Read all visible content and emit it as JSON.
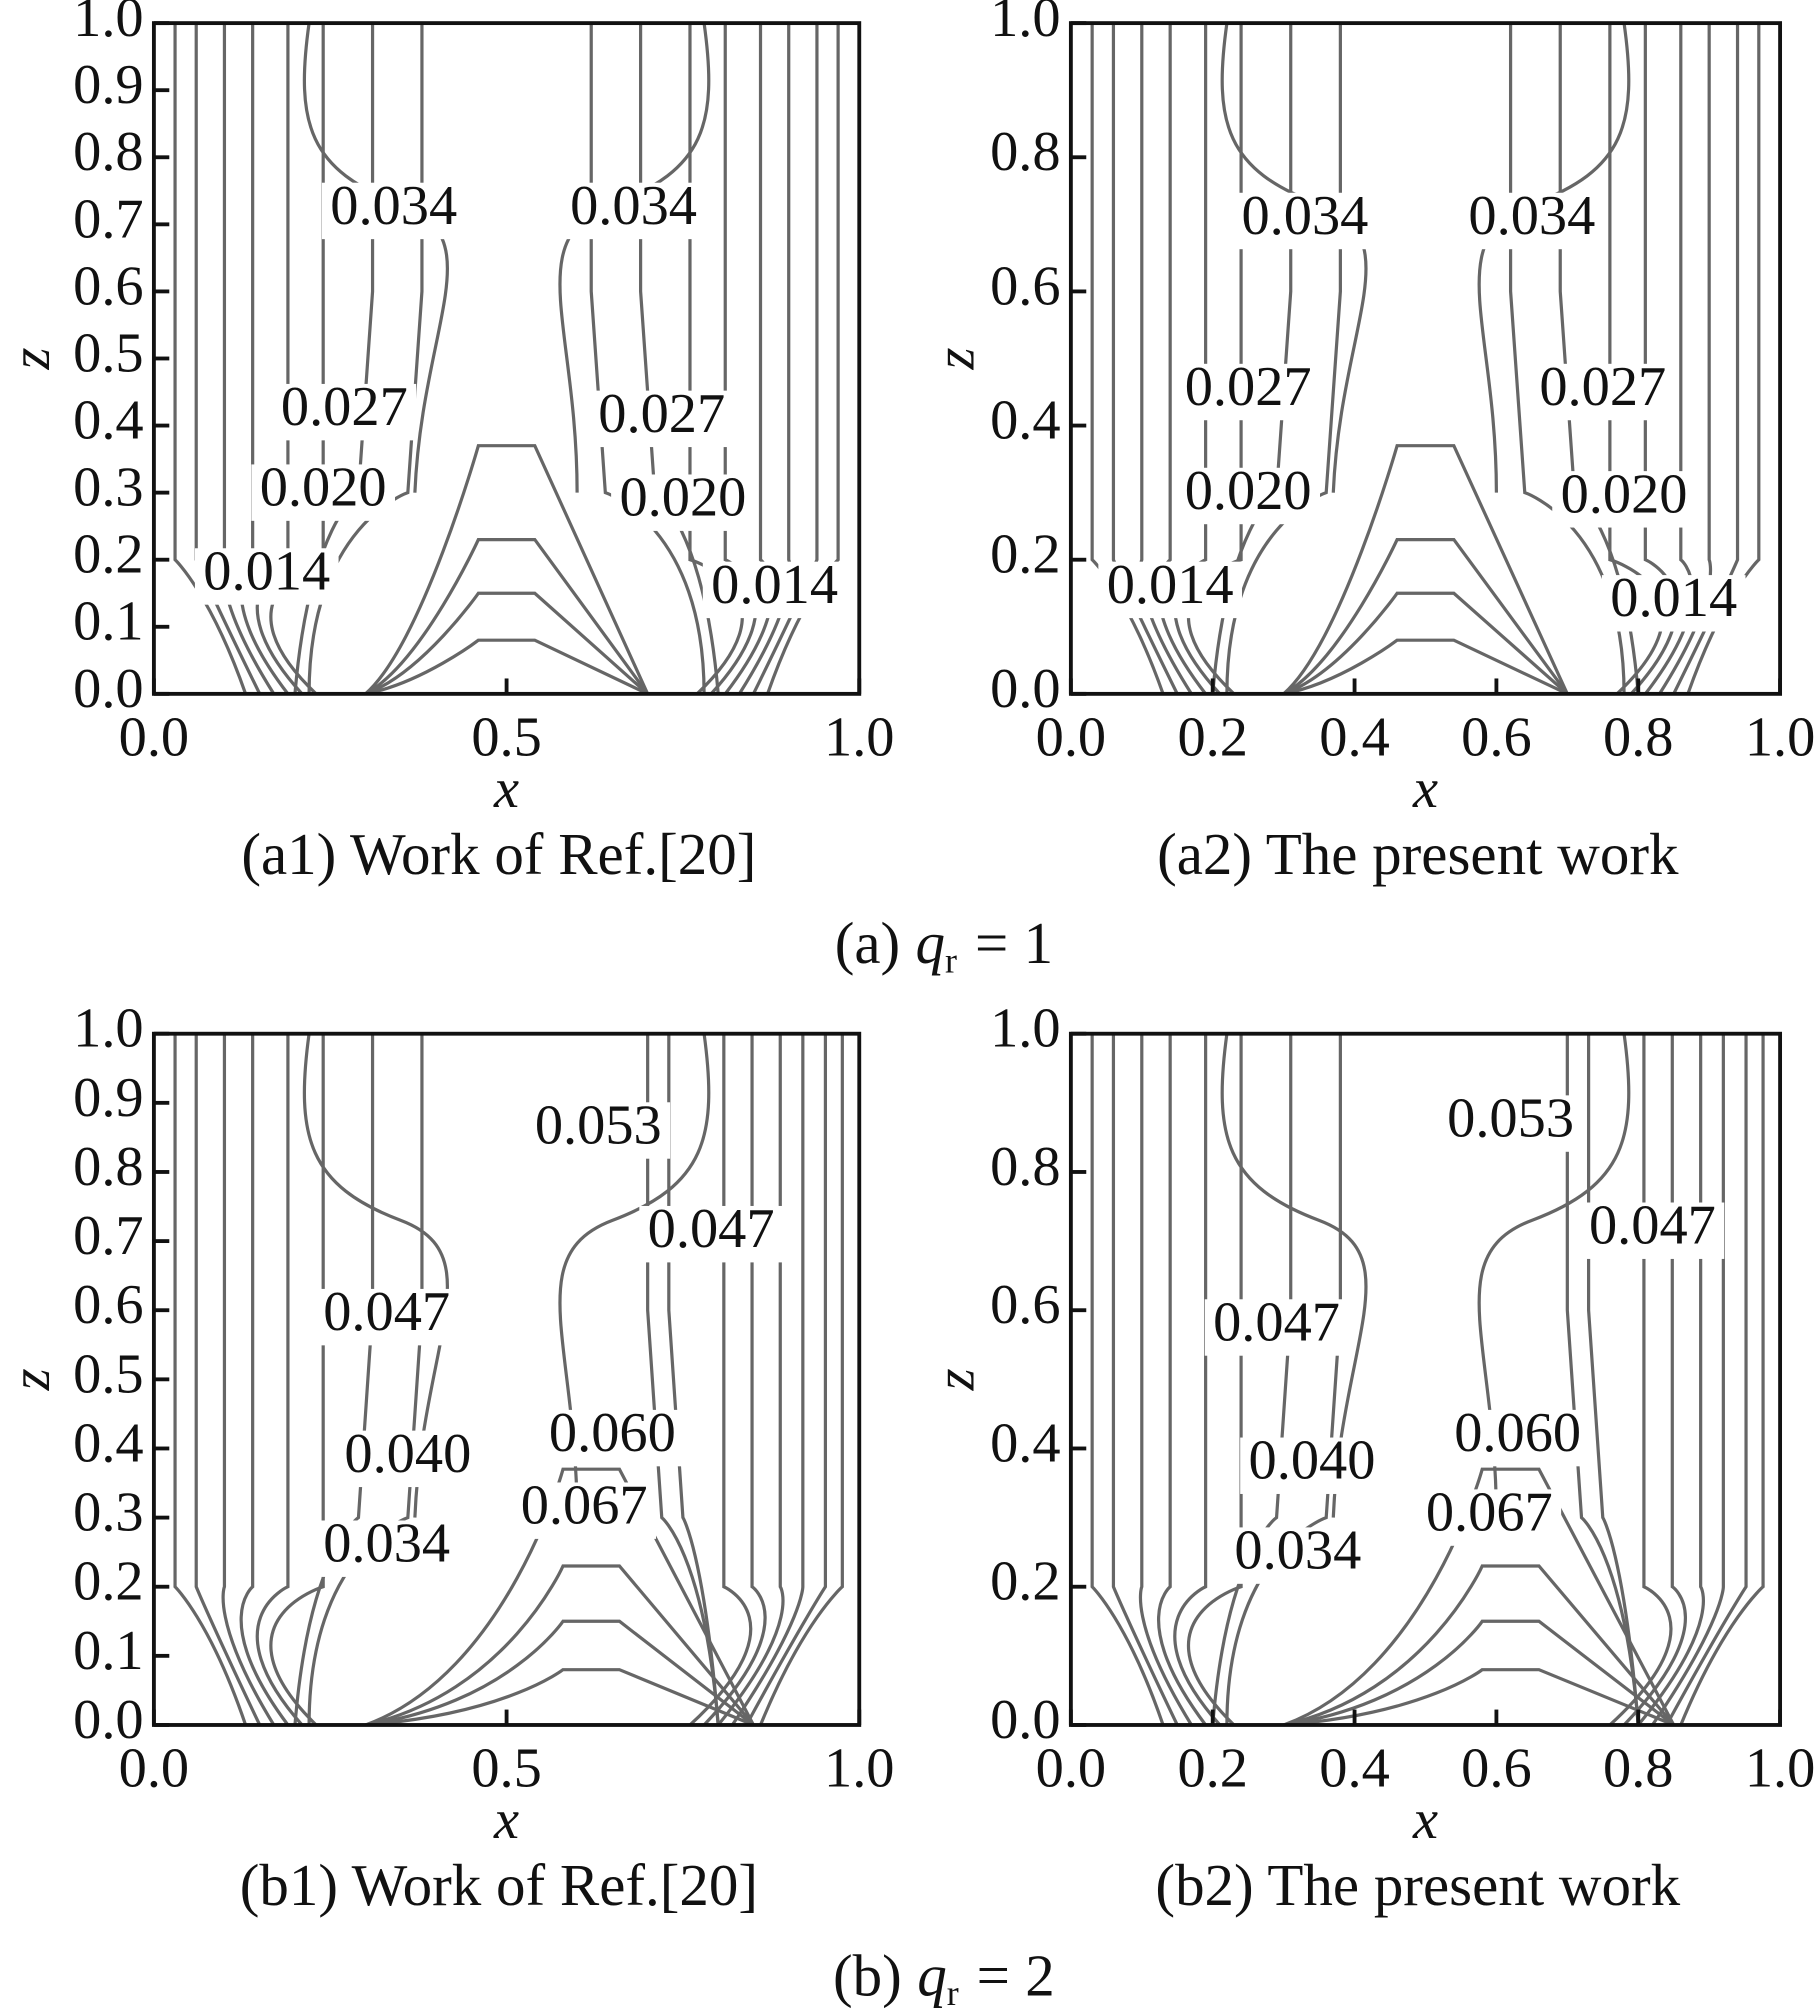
{
  "chart_data": [
    {
      "type": "contour",
      "caption": "(a1) Work of Ref.[20]",
      "xlabel": "x",
      "ylabel": "z",
      "xlim": [
        0,
        1
      ],
      "ylim": [
        0,
        1
      ],
      "xticks": [
        {
          "value": 0,
          "label": "0.0"
        },
        0.5,
        {
          "value": 1,
          "label": "1.0"
        }
      ],
      "yticks": [
        {
          "value": 0,
          "label": "0.0"
        },
        0.1,
        0.2,
        0.3,
        0.4,
        0.5,
        0.6,
        0.7,
        0.8,
        0.9,
        {
          "value": 1,
          "label": "1.0"
        }
      ],
      "values": [
        0.034,
        0.034,
        0.027,
        0.027,
        0.02,
        0.02,
        0.014,
        0.014
      ],
      "value_labels": [
        "0.034",
        "0.034",
        "0.027",
        "0.027",
        "0.020",
        "0.020",
        "0.014",
        "0.014"
      ]
    },
    {
      "type": "contour",
      "caption": "(a2) The present work",
      "xlabel": "x",
      "ylabel": "z",
      "xlim": [
        0,
        1
      ],
      "ylim": [
        0,
        1
      ],
      "xticks": [
        {
          "value": 0,
          "label": "0.0"
        },
        0.2,
        0.4,
        0.6,
        0.8,
        {
          "value": 1,
          "label": "1.0"
        }
      ],
      "yticks": [
        {
          "value": 0,
          "label": "0.0"
        },
        0.2,
        0.4,
        0.6,
        0.8,
        {
          "value": 1,
          "label": "1.0"
        }
      ],
      "values": [
        0.034,
        0.034,
        0.027,
        0.027,
        0.02,
        0.02,
        0.014,
        0.014
      ],
      "value_labels": [
        "0.034",
        "0.034",
        "0.027",
        "0.027",
        "0.020",
        "0.020",
        "0.014",
        "0.014"
      ]
    },
    {
      "type": "contour",
      "caption": "(b1) Work of Ref.[20]",
      "xlabel": "x",
      "ylabel": "z",
      "xlim": [
        0,
        1
      ],
      "ylim": [
        0,
        1
      ],
      "xticks": [
        {
          "value": 0,
          "label": "0.0"
        },
        0.5,
        {
          "value": 1,
          "label": "1.0"
        }
      ],
      "yticks": [
        {
          "value": 0,
          "label": "0.0"
        },
        0.1,
        0.2,
        0.3,
        0.4,
        0.5,
        0.6,
        0.7,
        0.8,
        0.9,
        {
          "value": 1,
          "label": "1.0"
        }
      ],
      "values": [
        0.053,
        0.047,
        0.047,
        0.04,
        0.06,
        0.067,
        0.034
      ],
      "value_labels": [
        "0.053",
        "0.047",
        "0.047",
        "0.040",
        "0.060",
        "0.067",
        "0.034"
      ]
    },
    {
      "type": "contour",
      "caption": "(b2) The present work",
      "xlabel": "x",
      "ylabel": "z",
      "xlim": [
        0,
        1
      ],
      "ylim": [
        0,
        1
      ],
      "xticks": [
        {
          "value": 0,
          "label": "0.0"
        },
        0.2,
        0.4,
        0.6,
        0.8,
        {
          "value": 1,
          "label": "1.0"
        }
      ],
      "yticks": [
        {
          "value": 0,
          "label": "0.0"
        },
        0.2,
        0.4,
        0.6,
        0.8,
        {
          "value": 1,
          "label": "1.0"
        }
      ],
      "values": [
        0.053,
        0.047,
        0.047,
        0.04,
        0.06,
        0.067,
        0.034
      ],
      "value_labels": [
        "0.053",
        "0.047",
        "0.047",
        "0.040",
        "0.060",
        "0.067",
        "0.034"
      ]
    }
  ],
  "figure": {
    "captions": [
      {
        "label": "(a)",
        "symbol": "q",
        "subscript": "r",
        "relation": "=",
        "value": 1
      },
      {
        "label": "(b)",
        "symbol": "q",
        "subscript": "r",
        "relation": "=",
        "value": 2
      }
    ]
  }
}
